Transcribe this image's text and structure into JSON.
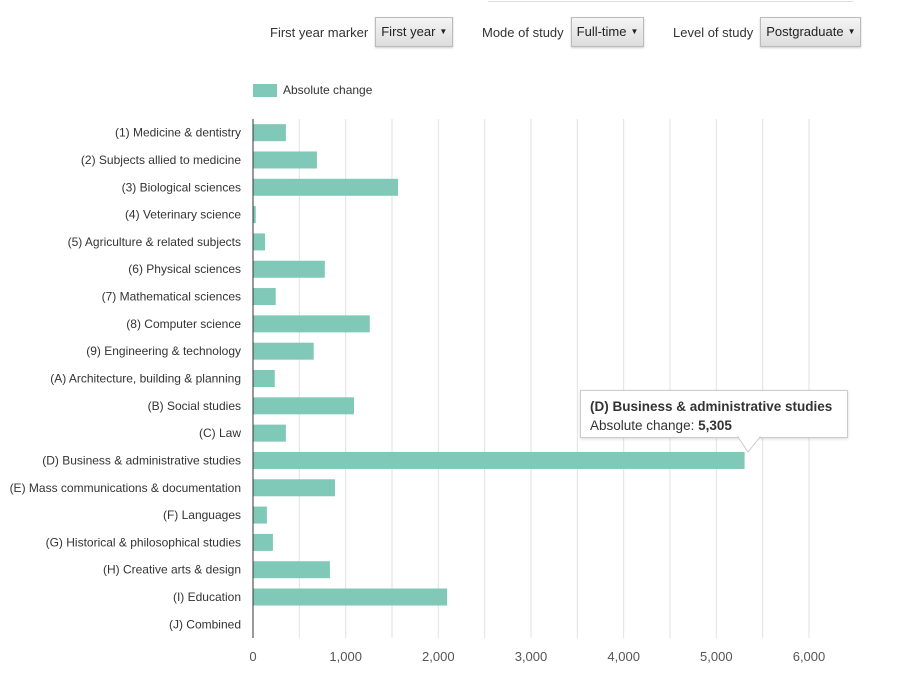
{
  "controls": [
    {
      "label": "First year marker",
      "value": "First year"
    },
    {
      "label": "Mode of study",
      "value": "Full-time"
    },
    {
      "label": "Level of study",
      "value": "Postgraduate"
    }
  ],
  "tooltip": {
    "title": "(D) Business & administrative studies",
    "label": "Absolute change: ",
    "value": "5,305"
  },
  "chart_data": {
    "type": "bar",
    "orientation": "horizontal",
    "title": "",
    "xlabel": "",
    "ylabel": "",
    "xlim": [
      0,
      6000
    ],
    "grid": true,
    "legend": {
      "entries": [
        "Absolute change"
      ],
      "placement": "top-left"
    },
    "x_ticks": [
      "0",
      "1,000",
      "2,000",
      "3,000",
      "4,000",
      "5,000",
      "6,000"
    ],
    "color": "#80c8b7",
    "categories": [
      "(1) Medicine & dentistry",
      "(2) Subjects allied to medicine",
      "(3) Biological sciences",
      "(4) Veterinary science",
      "(5) Agriculture & related subjects",
      "(6) Physical sciences",
      "(7) Mathematical sciences",
      "(8) Computer science",
      "(9) Engineering & technology",
      "(A) Architecture, building & planning",
      "(B) Social studies",
      "(C) Law",
      "(D) Business & administrative studies",
      "(E) Mass communications & documentation",
      "(F) Languages",
      "(G) Historical & philosophical studies",
      "(H) Creative arts & design",
      "(I) Education",
      "(J) Combined"
    ],
    "series": [
      {
        "name": "Absolute change",
        "values": [
          355,
          690,
          1565,
          30,
          130,
          775,
          245,
          1260,
          655,
          235,
          1090,
          355,
          5305,
          885,
          150,
          215,
          830,
          2095,
          0
        ]
      }
    ]
  }
}
